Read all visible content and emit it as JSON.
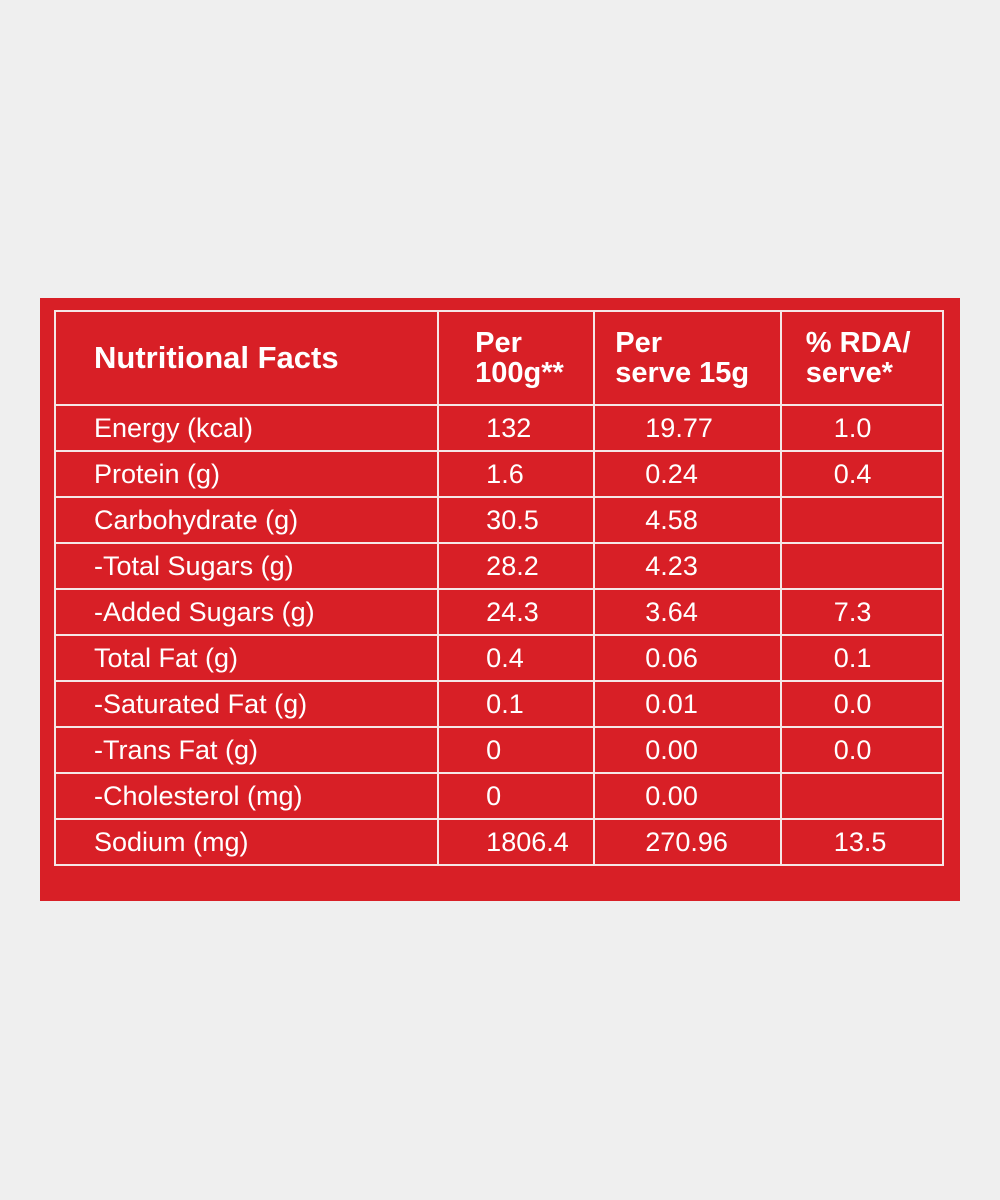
{
  "table": {
    "headers": {
      "name": "Nutritional Facts",
      "per_100g_line1": "Per",
      "per_100g_line2": "100g**",
      "per_serve_line1": "Per",
      "per_serve_line2": "serve 15g",
      "rda_line1": "% RDA/",
      "rda_line2": "serve*"
    },
    "rows": [
      {
        "name": "Energy (kcal)",
        "per_100g": "132",
        "per_serve": "19.77",
        "rda": "1.0"
      },
      {
        "name": "Protein (g)",
        "per_100g": "1.6",
        "per_serve": "0.24",
        "rda": "0.4"
      },
      {
        "name": "Carbohydrate (g)",
        "per_100g": "30.5",
        "per_serve": "4.58",
        "rda": ""
      },
      {
        "name": "-Total Sugars (g)",
        "per_100g": "28.2",
        "per_serve": "4.23",
        "rda": ""
      },
      {
        "name": "-Added Sugars (g)",
        "per_100g": "24.3",
        "per_serve": "3.64",
        "rda": "7.3"
      },
      {
        "name": "Total Fat (g)",
        "per_100g": "0.4",
        "per_serve": "0.06",
        "rda": "0.1"
      },
      {
        "name": "-Saturated Fat (g)",
        "per_100g": "0.1",
        "per_serve": "0.01",
        "rda": "0.0"
      },
      {
        "name": "-Trans Fat (g)",
        "per_100g": "0",
        "per_serve": "0.00",
        "rda": "0.0"
      },
      {
        "name": "-Cholesterol (mg)",
        "per_100g": "0",
        "per_serve": "0.00",
        "rda": ""
      },
      {
        "name": "Sodium (mg)",
        "per_100g": "1806.4",
        "per_serve": "270.96",
        "rda": "13.5"
      }
    ]
  },
  "colors": {
    "page_background": "#efefef",
    "panel_red": "#d81f26",
    "text": "#ffffff",
    "grid_lines": "#f6e6e6"
  }
}
